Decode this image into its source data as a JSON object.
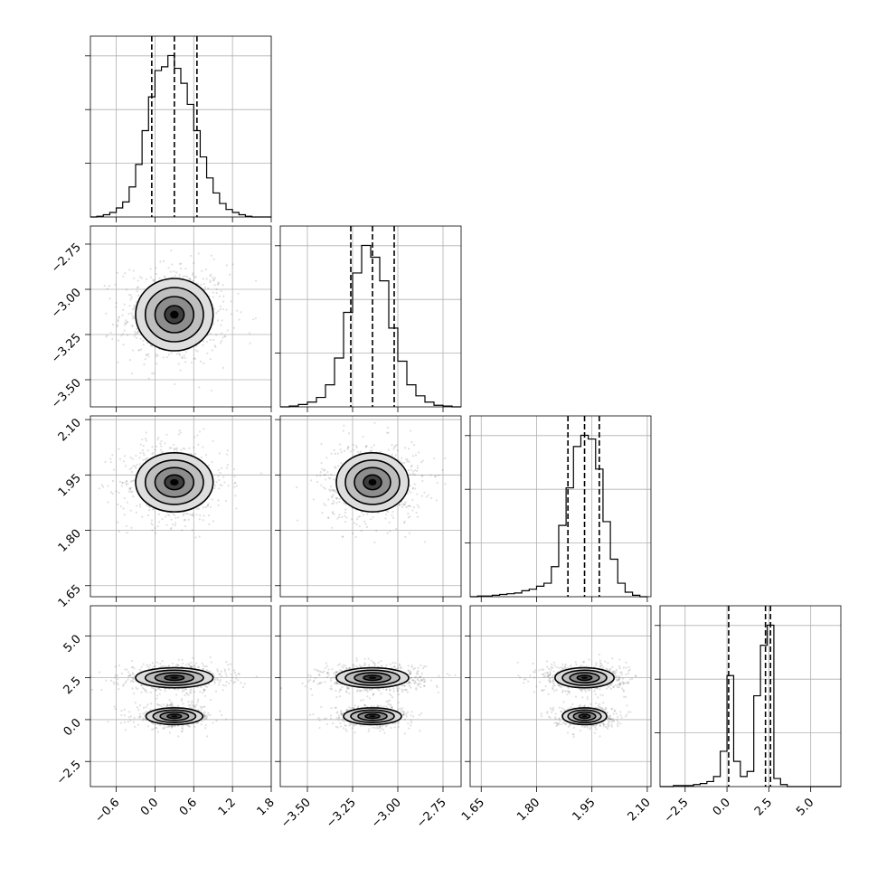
{
  "chart_data": {
    "type": "corner",
    "grid": true,
    "parameters": [
      {
        "ticks": [
          -0.6,
          0.0,
          0.6,
          1.2,
          1.8
        ],
        "tick_labels": [
          "−0.6",
          "0.0",
          "0.6",
          "1.2",
          "1.8"
        ],
        "range": [
          -1.0,
          1.8
        ],
        "quantiles": [
          -0.05,
          0.3,
          0.65
        ],
        "mean": 0.3,
        "sd": 0.3
      },
      {
        "ticks": [
          -3.5,
          -3.25,
          -3.0,
          -2.75
        ],
        "tick_labels": [
          "−3.50",
          "−3.25",
          "−3.00",
          "−2.75"
        ],
        "range": [
          -3.65,
          -2.65
        ],
        "quantiles": [
          -3.26,
          -3.14,
          -3.02
        ],
        "mean": -3.14,
        "sd": 0.1
      },
      {
        "ticks": [
          1.65,
          1.8,
          1.95,
          2.1
        ],
        "tick_labels": [
          "1.65",
          "1.80",
          "1.95",
          "2.10"
        ],
        "range": [
          1.62,
          2.11
        ],
        "quantiles": [
          1.885,
          1.93,
          1.97
        ],
        "mean": 1.93,
        "sd": 0.04
      },
      {
        "ticks": [
          -2.5,
          0.0,
          2.5,
          5.0
        ],
        "tick_labels": [
          "−2.5",
          "0.0",
          "2.5",
          "5.0"
        ],
        "range": [
          -4.0,
          6.8
        ],
        "quantiles": [
          0.1,
          2.3,
          2.6
        ]
      }
    ],
    "histograms": [
      {
        "param": 0,
        "bins": [
          -1.0,
          -0.9,
          -0.8,
          -0.7,
          -0.6,
          -0.5,
          -0.4,
          -0.3,
          -0.2,
          -0.1,
          0.0,
          0.1,
          0.2,
          0.3,
          0.4,
          0.5,
          0.6,
          0.7,
          0.8,
          0.9,
          1.0,
          1.1,
          1.2,
          1.3,
          1.4,
          1.5,
          1.6,
          1.7,
          1.8
        ],
        "counts": [
          0,
          1,
          3,
          6,
          12,
          20,
          40,
          70,
          115,
          160,
          195,
          200,
          215,
          198,
          178,
          150,
          115,
          80,
          52,
          32,
          18,
          10,
          6,
          3,
          1,
          0,
          0,
          0
        ]
      },
      {
        "param": 1,
        "bins": [
          -3.65,
          -3.6,
          -3.55,
          -3.5,
          -3.45,
          -3.4,
          -3.35,
          -3.3,
          -3.25,
          -3.2,
          -3.15,
          -3.1,
          -3.05,
          -3.0,
          -2.95,
          -2.9,
          -2.85,
          -2.8,
          -2.75,
          -2.7,
          -2.65
        ],
        "counts": [
          0,
          1,
          3,
          6,
          12,
          28,
          62,
          120,
          170,
          205,
          190,
          160,
          100,
          58,
          28,
          14,
          6,
          2,
          1,
          0
        ]
      },
      {
        "param": 2,
        "bins": [
          1.62,
          1.64,
          1.66,
          1.68,
          1.7,
          1.72,
          1.74,
          1.76,
          1.78,
          1.8,
          1.82,
          1.84,
          1.86,
          1.88,
          1.9,
          1.92,
          1.94,
          1.96,
          1.98,
          2.0,
          2.02,
          2.04,
          2.06,
          2.08,
          2.1
        ],
        "counts": [
          0,
          1,
          1,
          2,
          3,
          4,
          5,
          8,
          10,
          14,
          18,
          40,
          95,
          145,
          200,
          215,
          210,
          170,
          100,
          50,
          18,
          6,
          2,
          0
        ]
      },
      {
        "param": 3,
        "bins": [
          -4.0,
          -3.6,
          -3.2,
          -2.8,
          -2.4,
          -2.0,
          -1.6,
          -1.2,
          -0.8,
          -0.4,
          0.0,
          0.4,
          0.8,
          1.2,
          1.6,
          2.0,
          2.4,
          2.8,
          3.2,
          3.6,
          4.0,
          4.4,
          4.8,
          5.2,
          5.6,
          6.0,
          6.4,
          6.8
        ],
        "counts": [
          0,
          0,
          1,
          1,
          1,
          2,
          3,
          5,
          10,
          35,
          110,
          25,
          10,
          15,
          90,
          140,
          160,
          8,
          2,
          0,
          0,
          0,
          0,
          0,
          0,
          0,
          0
        ]
      }
    ],
    "joint_panels": [
      {
        "x_param": 0,
        "y_param": 1,
        "peaks": [
          {
            "x": 0.3,
            "y": -3.14,
            "sx": 0.3,
            "sy": 0.1
          }
        ]
      },
      {
        "x_param": 0,
        "y_param": 2,
        "peaks": [
          {
            "x": 0.3,
            "y": 1.93,
            "sx": 0.3,
            "sy": 0.04
          }
        ]
      },
      {
        "x_param": 1,
        "y_param": 2,
        "peaks": [
          {
            "x": -3.14,
            "y": 1.93,
            "sx": 0.1,
            "sy": 0.04
          }
        ]
      },
      {
        "x_param": 0,
        "y_param": 3,
        "peaks": [
          {
            "x": 0.3,
            "y": 2.5,
            "sx": 0.3,
            "sy": 0.3
          },
          {
            "x": 0.3,
            "y": 0.2,
            "sx": 0.22,
            "sy": 0.25
          }
        ]
      },
      {
        "x_param": 1,
        "y_param": 3,
        "peaks": [
          {
            "x": -3.14,
            "y": 2.5,
            "sx": 0.1,
            "sy": 0.3
          },
          {
            "x": -3.14,
            "y": 0.2,
            "sx": 0.08,
            "sy": 0.25
          }
        ]
      },
      {
        "x_param": 2,
        "y_param": 3,
        "peaks": [
          {
            "x": 1.93,
            "y": 2.5,
            "sx": 0.04,
            "sy": 0.3
          },
          {
            "x": 1.93,
            "y": 0.2,
            "sx": 0.03,
            "sy": 0.25
          }
        ]
      }
    ]
  }
}
